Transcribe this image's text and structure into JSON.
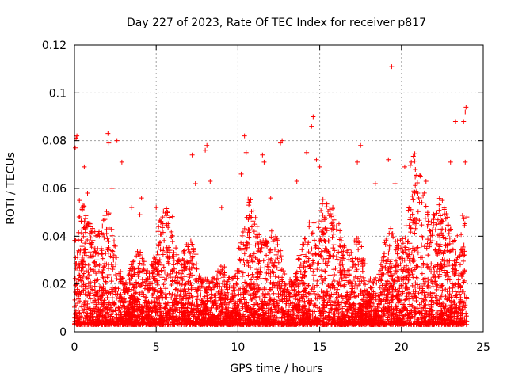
{
  "chart_data": {
    "type": "scatter",
    "title": "Day 227 of 2023, Rate Of TEC Index for receiver p817",
    "xlabel": "GPS time / hours",
    "ylabel": "ROTI / TECUs",
    "xlim": [
      0,
      25
    ],
    "ylim": [
      0,
      0.12
    ],
    "x_ticks": [
      "0",
      "5",
      "10",
      "15",
      "20",
      "25"
    ],
    "y_ticks": [
      "0",
      "0.02",
      "0.04",
      "0.06",
      "0.08",
      "0.1",
      "0.12"
    ],
    "grid": true,
    "marker": "+",
    "color": "#ff0000",
    "series": [
      {
        "points": [
          [
            0.05,
            0.077
          ],
          [
            0.1,
            0.081
          ],
          [
            0.15,
            0.082
          ],
          [
            0.3,
            0.055
          ],
          [
            0.5,
            0.052
          ],
          [
            0.6,
            0.069
          ],
          [
            0.8,
            0.058
          ],
          [
            2.05,
            0.083
          ],
          [
            2.1,
            0.079
          ],
          [
            2.3,
            0.06
          ],
          [
            2.6,
            0.08
          ],
          [
            2.9,
            0.071
          ],
          [
            3.5,
            0.052
          ],
          [
            4.0,
            0.049
          ],
          [
            4.1,
            0.056
          ],
          [
            5.0,
            0.052
          ],
          [
            7.2,
            0.074
          ],
          [
            7.4,
            0.062
          ],
          [
            8.0,
            0.076
          ],
          [
            8.1,
            0.078
          ],
          [
            8.3,
            0.063
          ],
          [
            9.0,
            0.052
          ],
          [
            10.2,
            0.066
          ],
          [
            10.4,
            0.082
          ],
          [
            10.5,
            0.075
          ],
          [
            11.5,
            0.074
          ],
          [
            11.6,
            0.071
          ],
          [
            12.0,
            0.056
          ],
          [
            12.6,
            0.079
          ],
          [
            12.7,
            0.08
          ],
          [
            13.6,
            0.063
          ],
          [
            14.2,
            0.075
          ],
          [
            14.5,
            0.086
          ],
          [
            14.6,
            0.09
          ],
          [
            14.8,
            0.072
          ],
          [
            15.0,
            0.069
          ],
          [
            17.3,
            0.071
          ],
          [
            17.5,
            0.078
          ],
          [
            18.4,
            0.062
          ],
          [
            19.2,
            0.072
          ],
          [
            19.4,
            0.111
          ],
          [
            19.6,
            0.062
          ],
          [
            20.2,
            0.069
          ],
          [
            21.0,
            0.058
          ],
          [
            21.5,
            0.063
          ],
          [
            22.5,
            0.055
          ],
          [
            23.0,
            0.071
          ],
          [
            23.3,
            0.088
          ],
          [
            23.8,
            0.088
          ],
          [
            23.9,
            0.092
          ],
          [
            23.95,
            0.094
          ],
          [
            23.9,
            0.071
          ]
        ]
      }
    ]
  }
}
